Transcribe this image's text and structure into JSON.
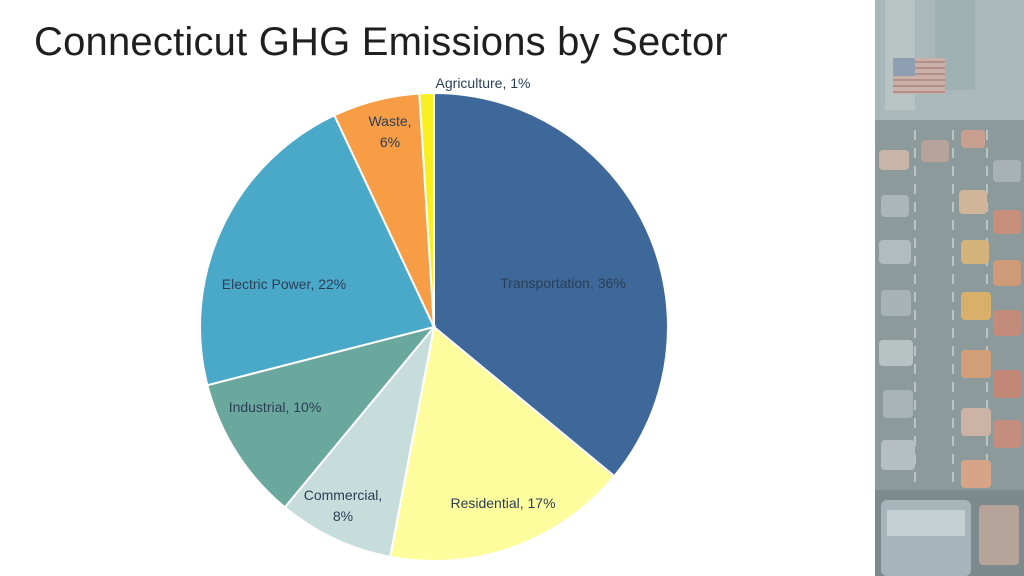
{
  "slide": {
    "title": "Connecticut GHG Emissions by Sector"
  },
  "photo": {
    "description_icon": "traffic-street-photo"
  },
  "chart_data": {
    "type": "pie",
    "title": "Connecticut GHG Emissions by Sector",
    "unit": "%",
    "start": "12 o'clock, clockwise",
    "slices": [
      {
        "name": "Transportation",
        "value": 36,
        "label": "Transportation, 36%",
        "color": "#3d6899"
      },
      {
        "name": "Residential",
        "value": 17,
        "label": "Residential, 17%",
        "color": "#fdfd9d"
      },
      {
        "name": "Commercial",
        "value": 8,
        "label": "Commercial,\n8%",
        "color": "#c6dddb"
      },
      {
        "name": "Industrial",
        "value": 10,
        "label": "Industrial, 10%",
        "color": "#6aa79c"
      },
      {
        "name": "Electric Power",
        "value": 22,
        "label": "Electric Power, 22%",
        "color": "#4aa9c9"
      },
      {
        "name": "Waste",
        "value": 6,
        "label": "Waste,\n6%",
        "color": "#f79d46"
      },
      {
        "name": "Agriculture",
        "value": 1,
        "label": "Agriculture, 1%",
        "color": "#f7ef1f"
      }
    ]
  }
}
